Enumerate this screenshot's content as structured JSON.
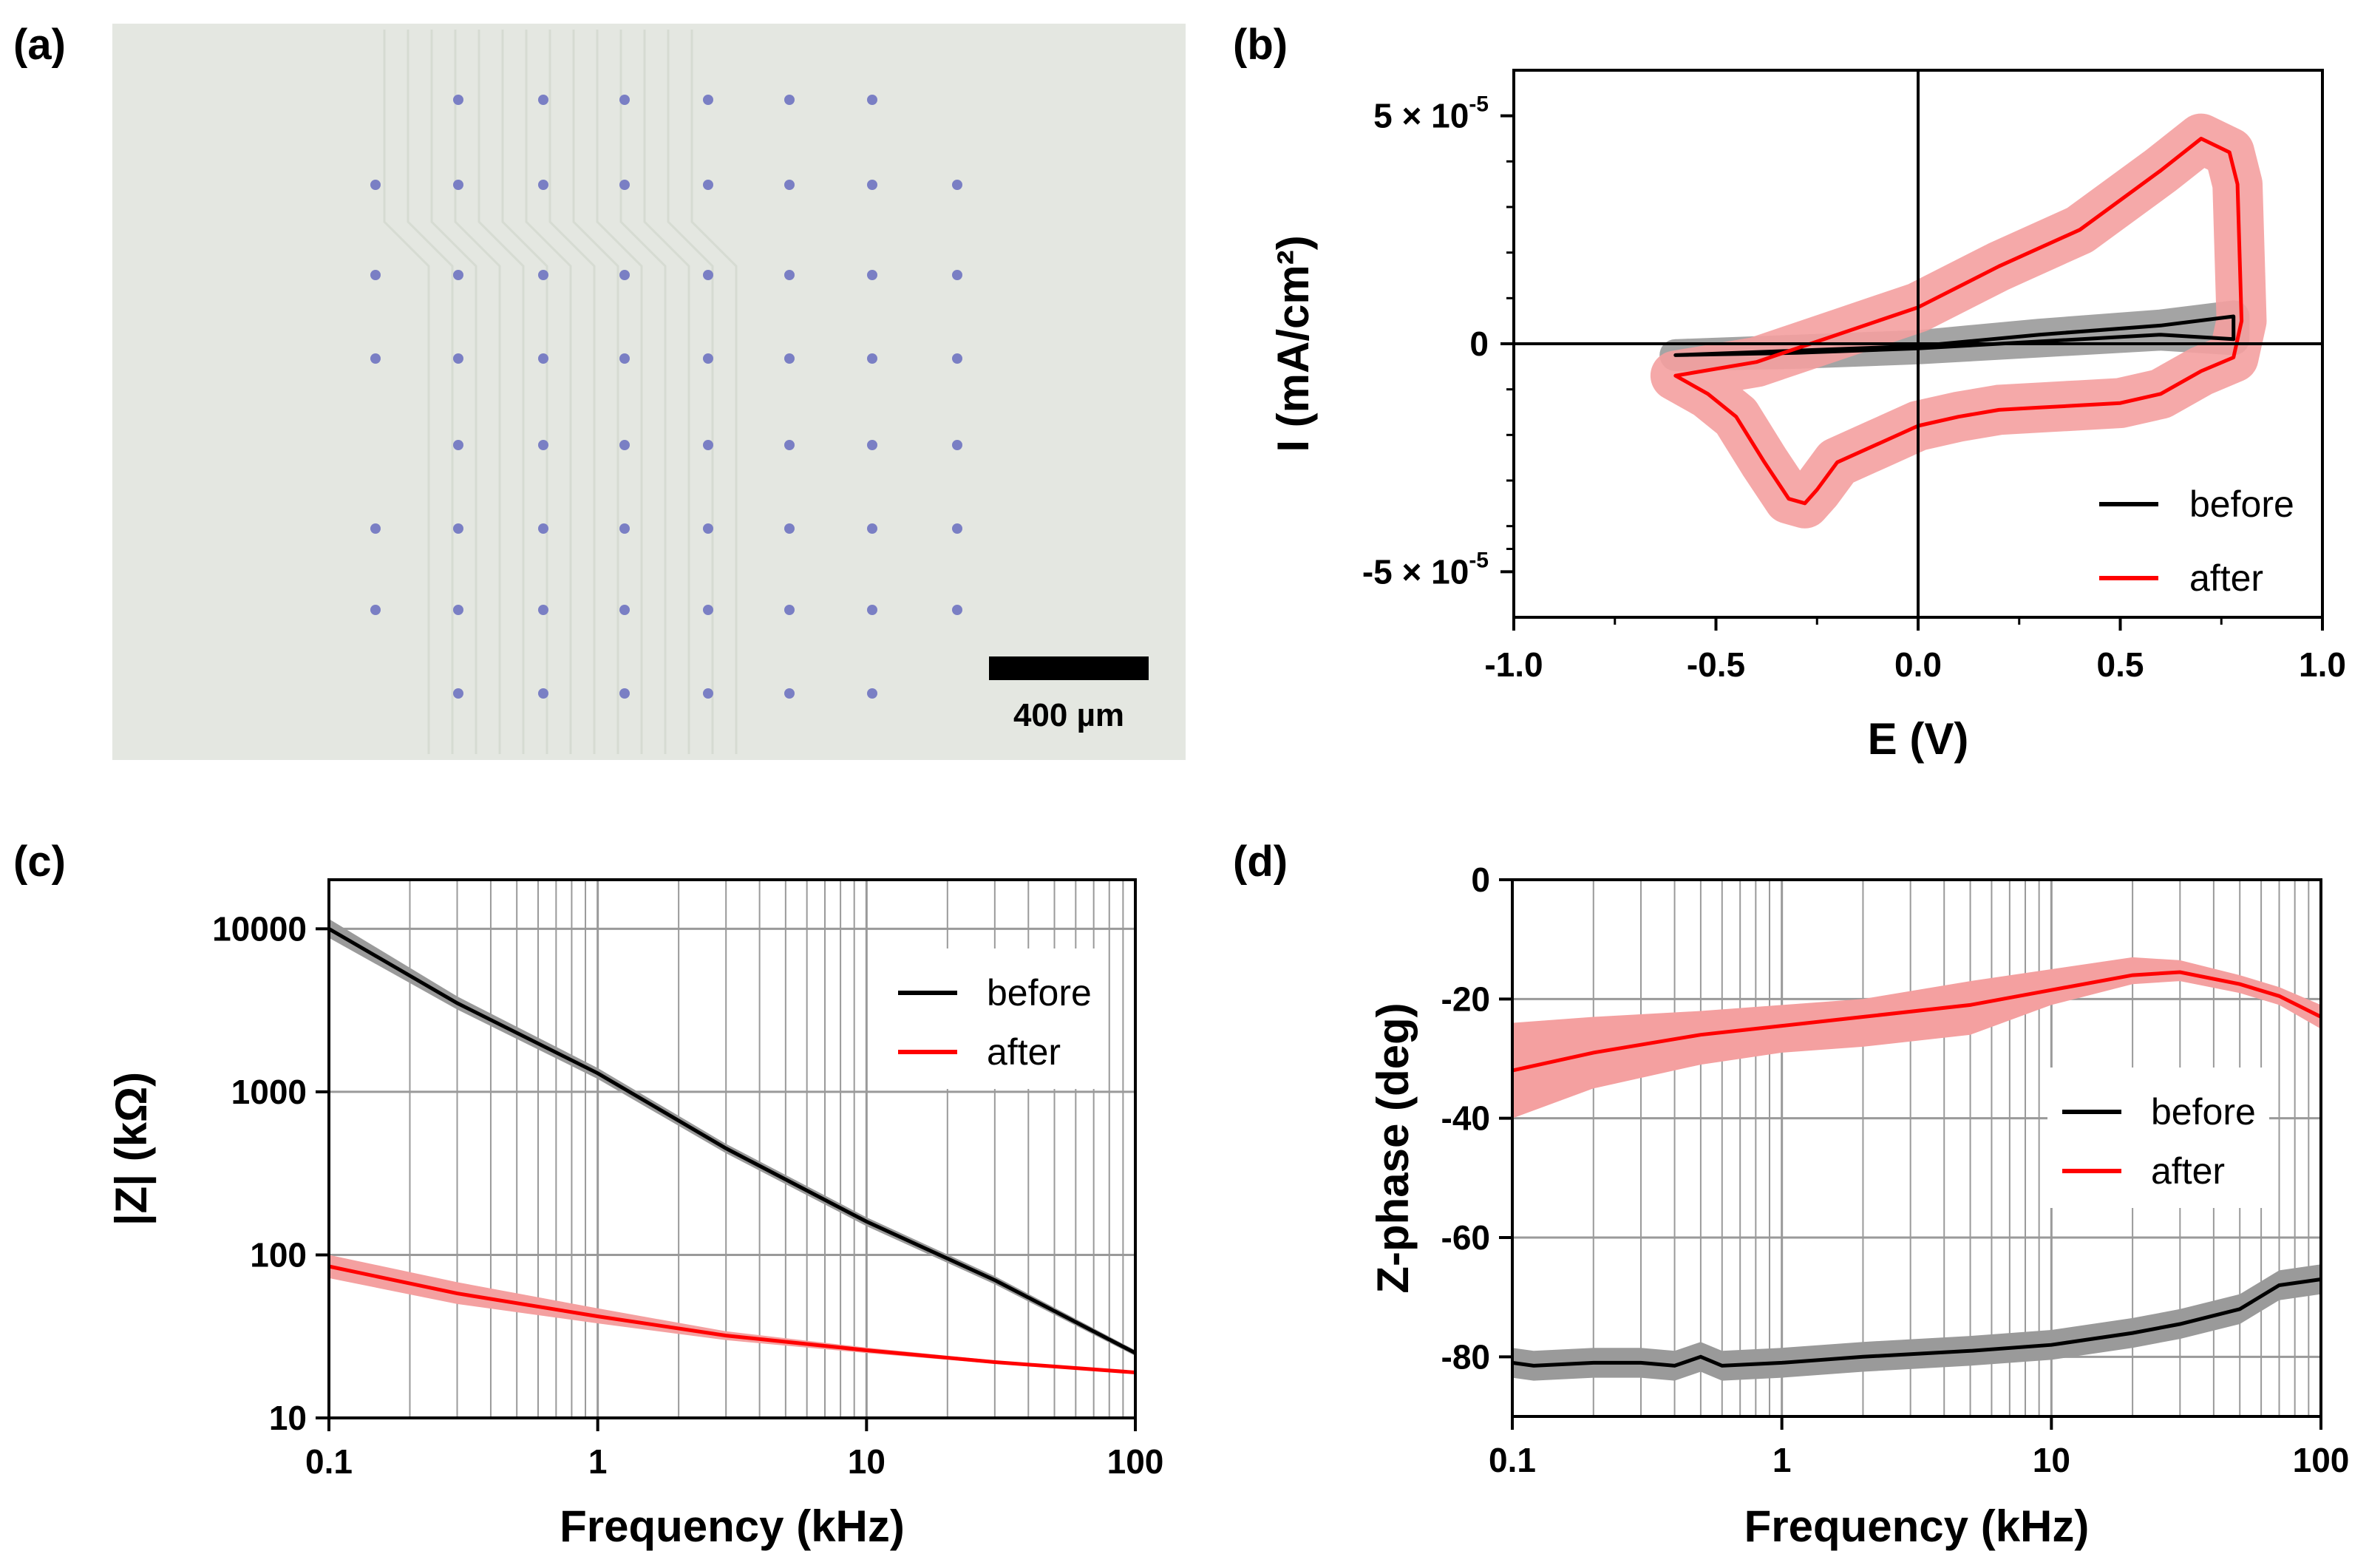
{
  "panels": {
    "a": {
      "label": "(a)",
      "scale_bar_text": "400 µm"
    },
    "b": {
      "label": "(b)"
    },
    "c": {
      "label": "(c)"
    },
    "d": {
      "label": "(d)"
    }
  },
  "colors": {
    "before": "#000000",
    "after": "#ff0000",
    "before_band": "#9a9a9a",
    "after_band": "#f4a0a0",
    "photo_bg": "#e4e7e1",
    "dots": "#7a7fc4"
  },
  "chart_data": [
    {
      "panel": "b",
      "type": "line",
      "xlabel": "E (V)",
      "ylabel": "I (mA/cm²)",
      "xlim": [
        -1.0,
        1.0
      ],
      "ylim": [
        -6e-05,
        6e-05
      ],
      "x_ticks": [
        -1.0,
        -0.5,
        0.0,
        0.5,
        1.0
      ],
      "x_tick_labels": [
        "-1.0",
        "-0.5",
        "0.0",
        "0.5",
        "1.0"
      ],
      "y_ticks": [
        5e-05,
        0,
        -5e-05
      ],
      "y_tick_labels": [
        {
          "base": "5 × 10",
          "exp": "-5"
        },
        {
          "base": "0",
          "exp": ""
        },
        {
          "base": "-5 × 10",
          "exp": "-5"
        }
      ],
      "legend": [
        "before",
        "after"
      ],
      "legend_position": "bottom-right",
      "series": [
        {
          "name": "before",
          "x": [
            -0.6,
            -0.3,
            0.0,
            0.3,
            0.6,
            0.78,
            0.78,
            0.6,
            0.3,
            0.0,
            -0.3,
            -0.6
          ],
          "y": [
            -2.5e-06,
            -1.5e-06,
            -5e-07,
            2e-06,
            4e-06,
            6e-06,
            1e-06,
            2e-06,
            5e-07,
            -1e-06,
            -2e-06,
            -2.5e-06
          ],
          "band": 3.5e-06
        },
        {
          "name": "after",
          "x": [
            -0.6,
            -0.4,
            -0.2,
            0.0,
            0.2,
            0.4,
            0.6,
            0.7,
            0.77,
            0.79,
            0.8,
            0.78,
            0.7,
            0.6,
            0.5,
            0.4,
            0.3,
            0.2,
            0.1,
            0.0,
            -0.1,
            -0.2,
            -0.25,
            -0.28,
            -0.32,
            -0.38,
            -0.45,
            -0.52,
            -0.6
          ],
          "y": [
            -7e-06,
            -4e-06,
            2e-06,
            8e-06,
            1.7e-05,
            2.5e-05,
            3.8e-05,
            4.5e-05,
            4.2e-05,
            3.5e-05,
            5e-06,
            -3e-06,
            -6e-06,
            -1.1e-05,
            -1.3e-05,
            -1.35e-05,
            -1.4e-05,
            -1.45e-05,
            -1.6e-05,
            -1.8e-05,
            -2.2e-05,
            -2.6e-05,
            -3.2e-05,
            -3.5e-05,
            -3.4e-05,
            -2.6e-05,
            -1.6e-05,
            -1.1e-05,
            -7e-06
          ],
          "band": 5.5e-06
        }
      ]
    },
    {
      "panel": "c",
      "type": "line",
      "xlabel": "Frequency (kHz)",
      "ylabel": "|Z| (kΩ)",
      "xscale": "log",
      "yscale": "log",
      "xlim": [
        0.1,
        100
      ],
      "ylim": [
        10,
        20000
      ],
      "x_ticks": [
        0.1,
        1,
        10,
        100
      ],
      "x_tick_labels": [
        "0.1",
        "1",
        "10",
        "100"
      ],
      "y_ticks": [
        10,
        100,
        1000,
        10000
      ],
      "y_tick_labels": [
        "10",
        "100",
        "1000",
        "10000"
      ],
      "grid": true,
      "legend": [
        "before",
        "after"
      ],
      "legend_position": "top-right",
      "series": [
        {
          "name": "before",
          "x": [
            0.1,
            0.3,
            1,
            3,
            10,
            30,
            100
          ],
          "y": [
            10000,
            3500,
            1300,
            450,
            160,
            70,
            25
          ],
          "band_lo": [
            8800,
            3200,
            1200,
            420,
            150,
            66,
            24
          ],
          "band_hi": [
            11500,
            3850,
            1400,
            480,
            170,
            74,
            26
          ]
        },
        {
          "name": "after",
          "x": [
            0.1,
            0.3,
            1,
            3,
            10,
            30,
            100
          ],
          "y": [
            85,
            58,
            42,
            32,
            26,
            22,
            19
          ],
          "band_lo": [
            72,
            50,
            38,
            30,
            25,
            21.5,
            18.8
          ],
          "band_hi": [
            100,
            68,
            47,
            34,
            27,
            22.5,
            19.4
          ]
        }
      ]
    },
    {
      "panel": "d",
      "type": "line",
      "xlabel": "Frequency (kHz)",
      "ylabel": "Z-phase (deg)",
      "xscale": "log",
      "xlim": [
        0.1,
        100
      ],
      "ylim": [
        -90,
        0
      ],
      "x_ticks": [
        0.1,
        1,
        10,
        100
      ],
      "x_tick_labels": [
        "0.1",
        "1",
        "10",
        "100"
      ],
      "y_ticks": [
        0,
        -20,
        -40,
        -60,
        -80
      ],
      "y_tick_labels": [
        "0",
        "-20",
        "-40",
        "-60",
        "-80"
      ],
      "grid": true,
      "legend": [
        "before",
        "after"
      ],
      "legend_position": "right",
      "series": [
        {
          "name": "before",
          "x": [
            0.1,
            0.12,
            0.2,
            0.3,
            0.4,
            0.5,
            0.6,
            1,
            2,
            5,
            10,
            20,
            30,
            50,
            70,
            100
          ],
          "y": [
            -81,
            -81.5,
            -81,
            -81,
            -81.5,
            -80,
            -81.5,
            -81,
            -80,
            -79,
            -78,
            -76,
            -74.5,
            -72,
            -68,
            -67
          ],
          "band": 2.5
        },
        {
          "name": "after",
          "x": [
            0.1,
            0.2,
            0.5,
            1,
            2,
            5,
            10,
            20,
            30,
            50,
            70,
            100
          ],
          "y": [
            -32,
            -29,
            -26,
            -24.5,
            -23,
            -21,
            -18.5,
            -16,
            -15.5,
            -17.5,
            -19.5,
            -23
          ],
          "band_lo": [
            -40,
            -35,
            -31,
            -29,
            -28,
            -26,
            -21,
            -17.5,
            -17,
            -19,
            -21,
            -25
          ],
          "band_hi": [
            -24,
            -23,
            -22,
            -21,
            -20,
            -17,
            -15,
            -13,
            -13.5,
            -16,
            -18,
            -21
          ]
        }
      ]
    }
  ]
}
